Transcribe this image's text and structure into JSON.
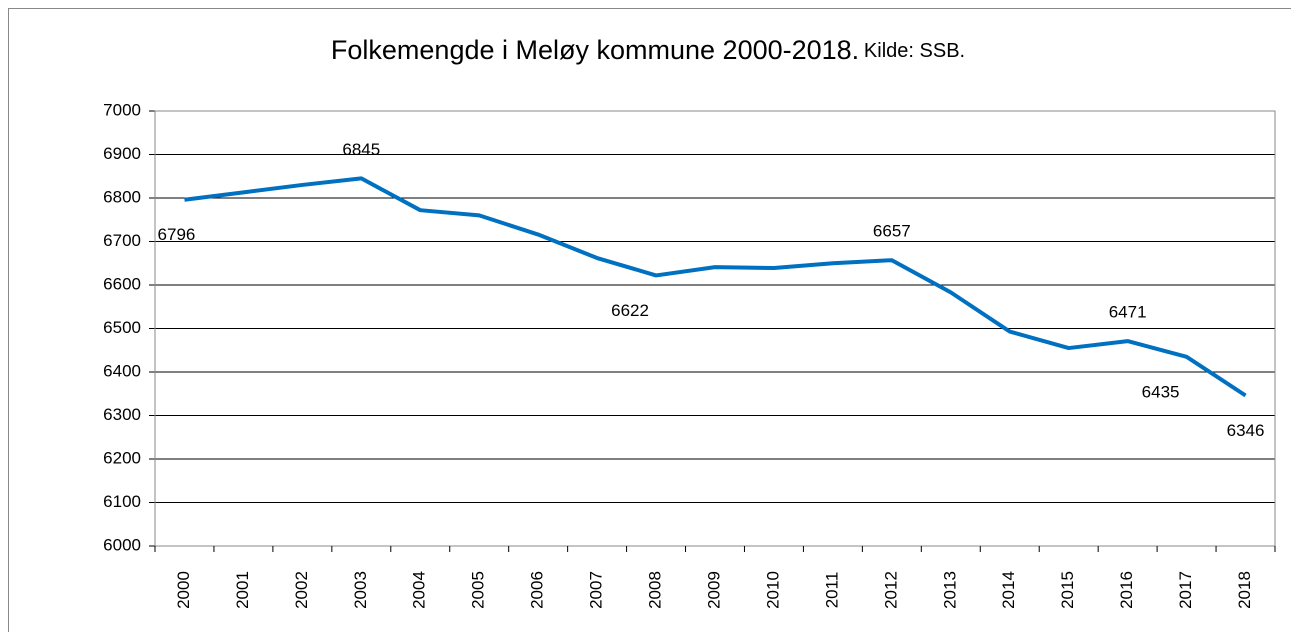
{
  "chart_data": {
    "type": "line",
    "title": "Folkemengde i Meløy kommune 2000-2018.",
    "subtitle": "Kilde: SSB.",
    "categories": [
      "2000",
      "2001",
      "2002",
      "2003",
      "2004",
      "2005",
      "2006",
      "2007",
      "2008",
      "2009",
      "2010",
      "2011",
      "2012",
      "2013",
      "2014",
      "2015",
      "2016",
      "2017",
      "2018"
    ],
    "series": [
      {
        "name": "Folkemengde",
        "color": "#0070c0",
        "values": [
          6796,
          6813,
          6830,
          6845,
          6772,
          6760,
          6716,
          6662,
          6622,
          6641,
          6639,
          6650,
          6657,
          6583,
          6493,
          6455,
          6471,
          6435,
          6346
        ],
        "value_labels": [
          "6796",
          null,
          null,
          "6845",
          null,
          null,
          null,
          null,
          "6622",
          null,
          null,
          null,
          "6657",
          null,
          null,
          null,
          "6471",
          "6435",
          "6346"
        ]
      }
    ],
    "ylim": [
      6000,
      7000
    ],
    "yticks": [
      6000,
      6100,
      6200,
      6300,
      6400,
      6500,
      6600,
      6700,
      6800,
      6900,
      7000
    ],
    "grid": true,
    "legend": false
  }
}
